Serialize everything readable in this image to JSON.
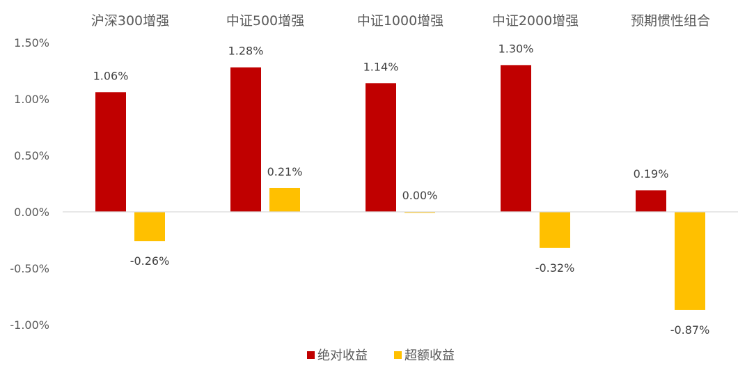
{
  "chart_data": {
    "type": "bar",
    "categories": [
      "沪深300增强",
      "中证500增强",
      "中证1000增强",
      "中证2000增强",
      "预期惯性组合"
    ],
    "series": [
      {
        "name": "绝对收益",
        "values": [
          1.06,
          1.28,
          1.14,
          1.3,
          0.19
        ],
        "labels": [
          "1.06%",
          "1.28%",
          "1.14%",
          "1.30%",
          "0.19%"
        ],
        "color": "#C00000"
      },
      {
        "name": "超额收益",
        "values": [
          -0.26,
          0.21,
          0.0,
          -0.32,
          -0.87
        ],
        "labels": [
          "-0.26%",
          "0.21%",
          "0.00%",
          "-0.32%",
          "-0.87%"
        ],
        "color": "#FFC000"
      }
    ],
    "ylim": [
      -1.0,
      1.5
    ],
    "yticks": [
      1.5,
      1.0,
      0.5,
      0.0,
      -0.5,
      -1.0
    ],
    "ytick_labels": [
      "1.50%",
      "1.00%",
      "0.50%",
      "0.00%",
      "-0.50%",
      "-1.00%"
    ],
    "xlabel": "",
    "ylabel": "",
    "grid": false,
    "legend_position": "bottom",
    "category_axis_position": "top"
  }
}
